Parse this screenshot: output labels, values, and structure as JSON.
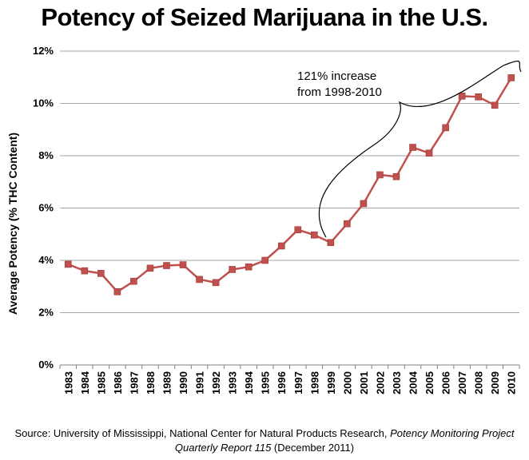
{
  "chart_data": {
    "type": "line",
    "title": "Potency of Seized Marijuana in the U.S.",
    "ylabel": "Average Potency (% THC Content)",
    "xlabel": "",
    "ylim": [
      0,
      12
    ],
    "yticks": [
      "0%",
      "2%",
      "4%",
      "6%",
      "8%",
      "10%",
      "12%"
    ],
    "grid": "horizontal",
    "categories": [
      "1983",
      "1984",
      "1985",
      "1986",
      "1987",
      "1988",
      "1989",
      "1990",
      "1991",
      "1992",
      "1993",
      "1994",
      "1995",
      "1996",
      "1997",
      "1998",
      "1999",
      "2000",
      "2001",
      "2002",
      "2003",
      "2004",
      "2005",
      "2006",
      "2007",
      "2008",
      "2009",
      "2010"
    ],
    "series": [
      {
        "color": "#c0504d",
        "values": [
          3.85,
          3.6,
          3.5,
          2.8,
          3.2,
          3.7,
          3.8,
          3.83,
          3.27,
          3.15,
          3.65,
          3.75,
          4.0,
          4.55,
          5.17,
          4.97,
          4.68,
          5.4,
          6.17,
          7.27,
          7.2,
          8.32,
          8.1,
          9.07,
          10.28,
          10.25,
          9.93,
          10.98
        ]
      }
    ],
    "annotation": {
      "line1": "121% increase",
      "line2": "from 1998-2010"
    }
  },
  "source": {
    "prefix": "Source: University of Mississippi, National Center for Natural Products Research, ",
    "italic": "Potency Monitoring Project Quarterly Report 115",
    "suffix": " (December 2011)"
  }
}
